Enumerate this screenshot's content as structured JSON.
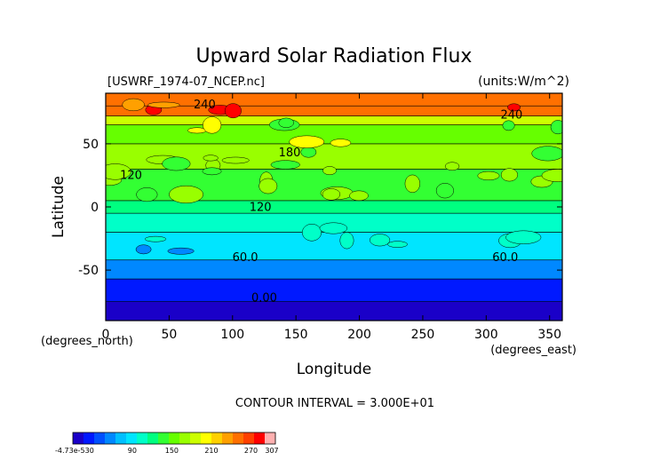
{
  "chart_data": {
    "type": "heatmap",
    "title": "Upward Solar Radiation Flux",
    "file_label": "[USWRF_1974-07_NCEP.nc]",
    "units_label": "(units:W/m^2)",
    "xlabel": "Longitude",
    "ylabel": "Latitude",
    "x_unit_label": "(degrees_east)",
    "y_unit_label": "(degrees_north)",
    "xlim": [
      0,
      360
    ],
    "ylim": [
      -90,
      90
    ],
    "x_ticks": [
      0,
      50,
      100,
      150,
      200,
      250,
      300,
      350
    ],
    "y_ticks": [
      -50,
      0,
      50
    ],
    "contour_interval_text": "CONTOUR INTERVAL = 3.000E+01",
    "contour_labels": [
      {
        "text": "240",
        "lon": 78,
        "lat": 78
      },
      {
        "text": "240",
        "lon": 320,
        "lat": 70
      },
      {
        "text": "180",
        "lon": 145,
        "lat": 40
      },
      {
        "text": "120",
        "lon": 20,
        "lat": 22
      },
      {
        "text": "120",
        "lon": 122,
        "lat": -3
      },
      {
        "text": "60.0",
        "lon": 110,
        "lat": -43
      },
      {
        "text": "60.0",
        "lon": 315,
        "lat": -43
      },
      {
        "text": "0.00",
        "lon": 125,
        "lat": -75
      }
    ],
    "lat_bands": [
      {
        "lat_min": -90,
        "lat_max": -75,
        "value": 0
      },
      {
        "lat_min": -75,
        "lat_max": -57,
        "value": 20
      },
      {
        "lat_min": -57,
        "lat_max": -42,
        "value": 50
      },
      {
        "lat_min": -42,
        "lat_max": -20,
        "value": 90
      },
      {
        "lat_min": -20,
        "lat_max": -5,
        "value": 110
      },
      {
        "lat_min": -5,
        "lat_max": 5,
        "value": 125
      },
      {
        "lat_min": 5,
        "lat_max": 30,
        "value": 145
      },
      {
        "lat_min": 30,
        "lat_max": 50,
        "value": 165
      },
      {
        "lat_min": 50,
        "lat_max": 65,
        "value": 160
      },
      {
        "lat_min": 65,
        "lat_max": 72,
        "value": 185
      },
      {
        "lat_min": 72,
        "lat_max": 80,
        "value": 245
      },
      {
        "lat_min": 80,
        "lat_max": 90,
        "value": 255
      }
    ],
    "colorbar": {
      "tick_labels": [
        "-4.73e-530",
        "90",
        "150",
        "210",
        "270",
        "307"
      ],
      "min": 0,
      "max": 307,
      "colors": [
        "#1a00c8",
        "#0019ff",
        "#0050ff",
        "#0088ff",
        "#00bfff",
        "#00e5ff",
        "#00ffc8",
        "#00ff80",
        "#33ff33",
        "#66ff00",
        "#99ff00",
        "#ccff00",
        "#ffff00",
        "#ffd000",
        "#ffa000",
        "#ff7000",
        "#ff4000",
        "#ff0000",
        "#ffb0b0"
      ]
    }
  }
}
